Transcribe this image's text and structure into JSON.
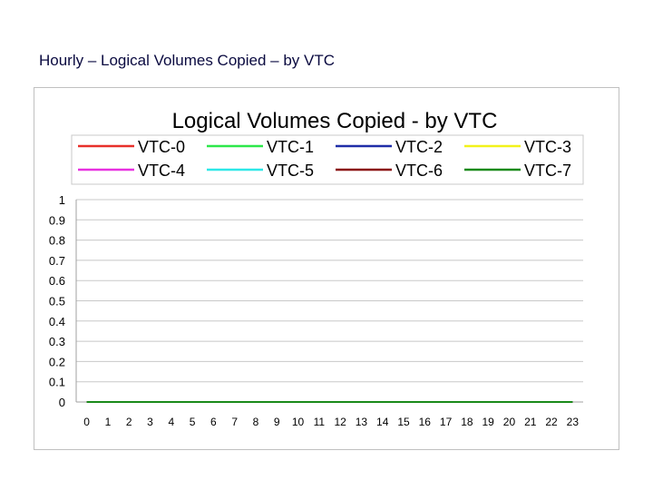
{
  "slide": {
    "title": "Hourly – Logical Volumes Copied – by VTC"
  },
  "chart_data": {
    "type": "line",
    "title": "Logical Volumes Copied - by VTC",
    "xlabel": "",
    "ylabel": "",
    "x": [
      0,
      1,
      2,
      3,
      4,
      5,
      6,
      7,
      8,
      9,
      10,
      11,
      12,
      13,
      14,
      15,
      16,
      17,
      18,
      19,
      20,
      21,
      22,
      23
    ],
    "ylim": [
      0,
      1
    ],
    "yticks": [
      0,
      0.1,
      0.2,
      0.3,
      0.4,
      0.5,
      0.6,
      0.7,
      0.8,
      0.9,
      1
    ],
    "ytick_labels": [
      "0",
      "0.1",
      "0.2",
      "0.3",
      "0.4",
      "0.5",
      "0.6",
      "0.7",
      "0.8",
      "0.9",
      "1"
    ],
    "grid": true,
    "legend_position": "top",
    "series": [
      {
        "name": "VTC-0",
        "color": "#e8302a",
        "values": [
          0,
          0,
          0,
          0,
          0,
          0,
          0,
          0,
          0,
          0,
          0,
          0,
          0,
          0,
          0,
          0,
          0,
          0,
          0,
          0,
          0,
          0,
          0,
          0
        ]
      },
      {
        "name": "VTC-1",
        "color": "#2ee84a",
        "values": [
          0,
          0,
          0,
          0,
          0,
          0,
          0,
          0,
          0,
          0,
          0,
          0,
          0,
          0,
          0,
          0,
          0,
          0,
          0,
          0,
          0,
          0,
          0,
          0
        ]
      },
      {
        "name": "VTC-2",
        "color": "#1f2ea8",
        "values": [
          0,
          0,
          0,
          0,
          0,
          0,
          0,
          0,
          0,
          0,
          0,
          0,
          0,
          0,
          0,
          0,
          0,
          0,
          0,
          0,
          0,
          0,
          0,
          0
        ]
      },
      {
        "name": "VTC-3",
        "color": "#f2f21a",
        "values": [
          0,
          0,
          0,
          0,
          0,
          0,
          0,
          0,
          0,
          0,
          0,
          0,
          0,
          0,
          0,
          0,
          0,
          0,
          0,
          0,
          0,
          0,
          0,
          0
        ]
      },
      {
        "name": "VTC-4",
        "color": "#e832e0",
        "values": [
          0,
          0,
          0,
          0,
          0,
          0,
          0,
          0,
          0,
          0,
          0,
          0,
          0,
          0,
          0,
          0,
          0,
          0,
          0,
          0,
          0,
          0,
          0,
          0
        ]
      },
      {
        "name": "VTC-5",
        "color": "#2ee8e8",
        "values": [
          0,
          0,
          0,
          0,
          0,
          0,
          0,
          0,
          0,
          0,
          0,
          0,
          0,
          0,
          0,
          0,
          0,
          0,
          0,
          0,
          0,
          0,
          0,
          0
        ]
      },
      {
        "name": "VTC-6",
        "color": "#8a1010",
        "values": [
          0,
          0,
          0,
          0,
          0,
          0,
          0,
          0,
          0,
          0,
          0,
          0,
          0,
          0,
          0,
          0,
          0,
          0,
          0,
          0,
          0,
          0,
          0,
          0
        ]
      },
      {
        "name": "VTC-7",
        "color": "#1a8a1a",
        "values": [
          0,
          0,
          0,
          0,
          0,
          0,
          0,
          0,
          0,
          0,
          0,
          0,
          0,
          0,
          0,
          0,
          0,
          0,
          0,
          0,
          0,
          0,
          0,
          0
        ]
      }
    ]
  }
}
